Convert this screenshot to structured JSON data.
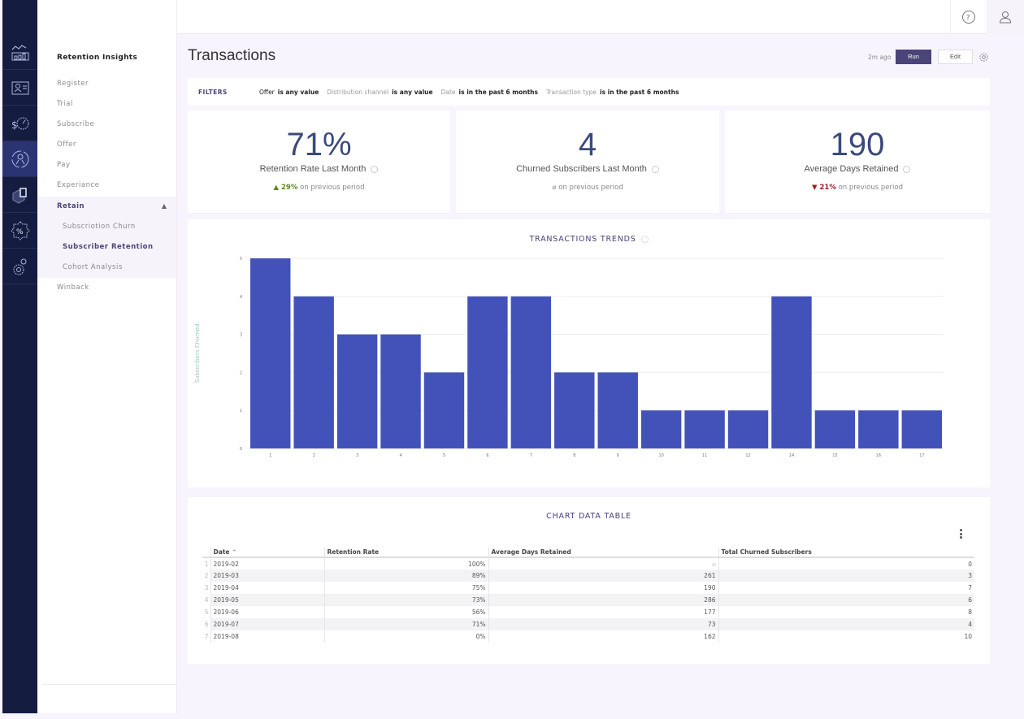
{
  "rail": {
    "items": [
      {
        "icon": "analytics-icon"
      },
      {
        "icon": "user-card-icon"
      },
      {
        "icon": "dollar-gauge-icon"
      },
      {
        "icon": "retention-user-icon",
        "active": true
      },
      {
        "icon": "cube-icon"
      },
      {
        "icon": "percent-badge-icon"
      },
      {
        "icon": "settings-gears-icon"
      }
    ]
  },
  "nav": {
    "title": "Retention Insights",
    "items": [
      "Register",
      "Trial",
      "Subscribe",
      "Offer",
      "Pay",
      "Experiance"
    ],
    "group": {
      "label": "Retain",
      "expanded": true,
      "children": [
        {
          "label": "Subscriotion Churn",
          "active": false
        },
        {
          "label": "Subscriber Retention",
          "active": true
        },
        {
          "label": "Cohort Analysis",
          "active": false
        }
      ]
    },
    "after_group": [
      "Winback"
    ]
  },
  "topbar": {
    "help_icon": "help-circle-icon",
    "user_icon": "user-icon"
  },
  "header": {
    "title": "Transactions",
    "last_run": "2m ago",
    "run_label": "Run",
    "edit_label": "Edit"
  },
  "filters": {
    "label": "FILTERS",
    "items": [
      {
        "key": "Offer",
        "value": "is any value"
      },
      {
        "key": "Distribution channel",
        "value": "is any value"
      },
      {
        "key": "Date",
        "value": "is in the past 6 months"
      },
      {
        "key": "Transaction type",
        "value": "is in the past 6 months"
      }
    ]
  },
  "kpis": [
    {
      "value": "71%",
      "label": "Retention Rate Last Month",
      "delta_dir": "up",
      "delta": "29%",
      "delta_text": "on previous period"
    },
    {
      "value": "4",
      "label": "Churned Subscribers Last Month",
      "delta_dir": "none",
      "delta": "⌀",
      "delta_text": "on previous period"
    },
    {
      "value": "190",
      "label": "Average Days Retained",
      "delta_dir": "down",
      "delta": "21%",
      "delta_text": "on previous period"
    }
  ],
  "chart_data": {
    "type": "bar",
    "title": "TRANSACTIONS TRENDS",
    "xlabel": "",
    "ylabel": "Subscribers Churned",
    "categories": [
      "1",
      "2",
      "3",
      "4",
      "5",
      "6",
      "7",
      "8",
      "9",
      "10",
      "11",
      "12",
      "14",
      "15",
      "16",
      "17"
    ],
    "values": [
      5,
      4,
      3,
      3,
      2,
      4,
      4,
      2,
      2,
      1,
      1,
      1,
      4,
      1,
      1,
      1
    ],
    "ylim": [
      0,
      5
    ],
    "yticks": [
      0,
      1,
      2,
      3,
      4,
      5
    ],
    "grid": true,
    "color": "#4352b8"
  },
  "table": {
    "title": "CHART DATA TABLE",
    "columns": [
      "Date",
      "Retention Rate",
      "Average Days Retained",
      "Total Churned Subscribers"
    ],
    "sort_indicator": "^",
    "rows": [
      [
        "2019-02",
        "100%",
        "⌀",
        "0"
      ],
      [
        "2019-03",
        "89%",
        "261",
        "3"
      ],
      [
        "2019-04",
        "75%",
        "190",
        "7"
      ],
      [
        "2019-05",
        "73%",
        "286",
        "6"
      ],
      [
        "2019-06",
        "56%",
        "177",
        "8"
      ],
      [
        "2019-07",
        "71%",
        "73",
        "4"
      ],
      [
        "2019-08",
        "0%",
        "162",
        "10"
      ]
    ]
  }
}
